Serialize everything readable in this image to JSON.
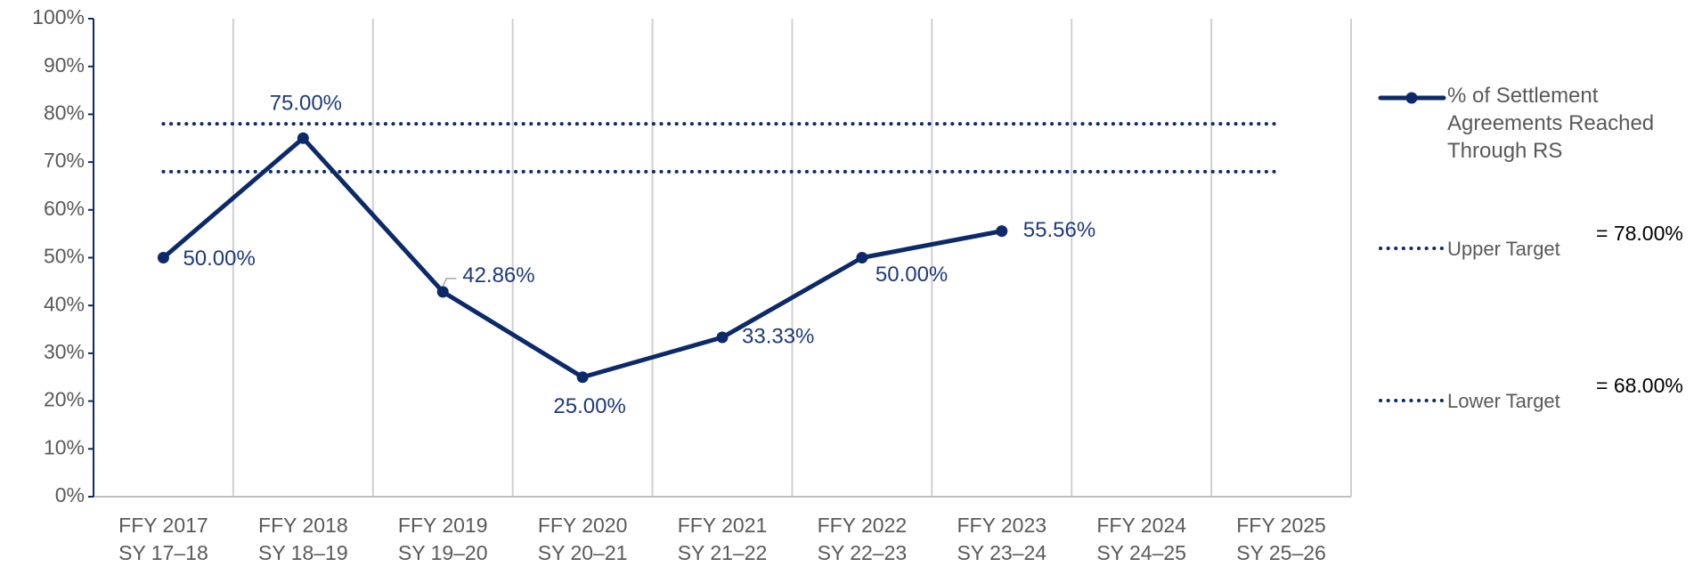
{
  "chart_data": {
    "type": "line",
    "categories": [
      [
        "FFY 2017",
        "SY 17–18"
      ],
      [
        "FFY 2018",
        "SY 18–19"
      ],
      [
        "FFY 2019",
        "SY 19–20"
      ],
      [
        "FFY 2020",
        "SY 20–21"
      ],
      [
        "FFY 2021",
        "SY 21–22"
      ],
      [
        "FFY 2022",
        "SY 22–23"
      ],
      [
        "FFY 2023",
        "SY 23–24"
      ],
      [
        "FFY 2024",
        "SY 24–25"
      ],
      [
        "FFY 2025",
        "SY 25–26"
      ]
    ],
    "series": [
      {
        "name": "% of Settlement Agreements Reached Through RS",
        "color": "#0c2a69",
        "marker": "circle",
        "style": "solid",
        "values": [
          50,
          75,
          42.86,
          25,
          33.33,
          50,
          55.56,
          null,
          null
        ],
        "value_labels": [
          "50.00%",
          "75.00%",
          "42.86%",
          "25.00%",
          "33.33%",
          "50.00%",
          "55.56%",
          null,
          null
        ]
      },
      {
        "name": "Upper Target",
        "color": "#0c2a69",
        "style": "dotted",
        "legend_value_label": "= 78.00%",
        "values": [
          78,
          78,
          78,
          78,
          78,
          78,
          78,
          78,
          78
        ]
      },
      {
        "name": "Lower Target",
        "color": "#0c2a69",
        "style": "dotted",
        "legend_value_label": "= 68.00%",
        "values": [
          68,
          68,
          68,
          68,
          68,
          68,
          68,
          68,
          68
        ]
      }
    ],
    "ylim": [
      0,
      100
    ],
    "yticks": [
      {
        "value": 0,
        "label": "0%"
      },
      {
        "value": 10,
        "label": "10%"
      },
      {
        "value": 20,
        "label": "20%"
      },
      {
        "value": 30,
        "label": "30%"
      },
      {
        "value": 40,
        "label": "40%"
      },
      {
        "value": 50,
        "label": "50%"
      },
      {
        "value": 60,
        "label": "60%"
      },
      {
        "value": 70,
        "label": "70%"
      },
      {
        "value": 80,
        "label": "80%"
      },
      {
        "value": 90,
        "label": "90%"
      },
      {
        "value": 100,
        "label": "100%"
      }
    ],
    "grid": "vertical"
  }
}
